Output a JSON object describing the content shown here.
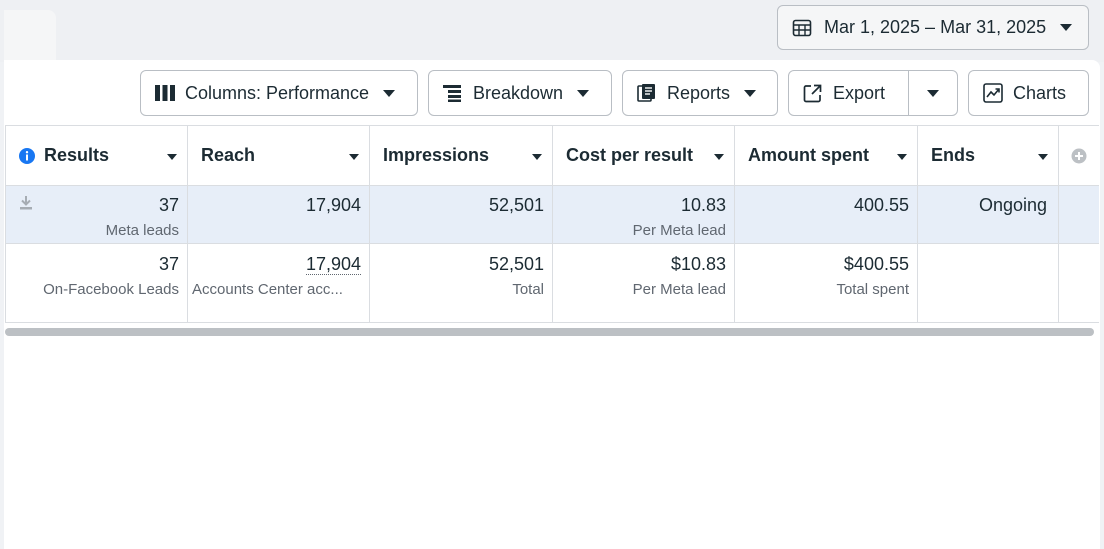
{
  "date_range": {
    "label": "Mar 1, 2025 – Mar 31, 2025",
    "icon": "calendar-icon"
  },
  "toolbar": {
    "columns_label": "Columns: Performance",
    "breakdown_label": "Breakdown",
    "reports_label": "Reports",
    "export_label": "Export",
    "charts_label": "Charts"
  },
  "table": {
    "headers": [
      "Results",
      "Reach",
      "Impressions",
      "Cost per result",
      "Amount spent",
      "Ends"
    ],
    "rows": [
      {
        "results": {
          "value": "37",
          "sub": "Meta leads"
        },
        "reach": {
          "value": "17,904"
        },
        "impressions": {
          "value": "52,501"
        },
        "cost_per_result": {
          "value": "10.83",
          "sub": "Per Meta lead"
        },
        "amount_spent": {
          "value": "400.55"
        },
        "ends": {
          "value": "Ongoing"
        }
      },
      {
        "results": {
          "value": "37",
          "sub": "On-Facebook Leads"
        },
        "reach": {
          "value": "17,904",
          "sub": "Accounts Center acc..."
        },
        "impressions": {
          "value": "52,501",
          "sub": "Total"
        },
        "cost_per_result": {
          "value": "$10.83",
          "sub": "Per Meta lead"
        },
        "amount_spent": {
          "value": "$400.55",
          "sub": "Total spent"
        }
      }
    ]
  },
  "colors": {
    "selected_row": "#e7eef8",
    "info_icon": "#1877f2"
  }
}
